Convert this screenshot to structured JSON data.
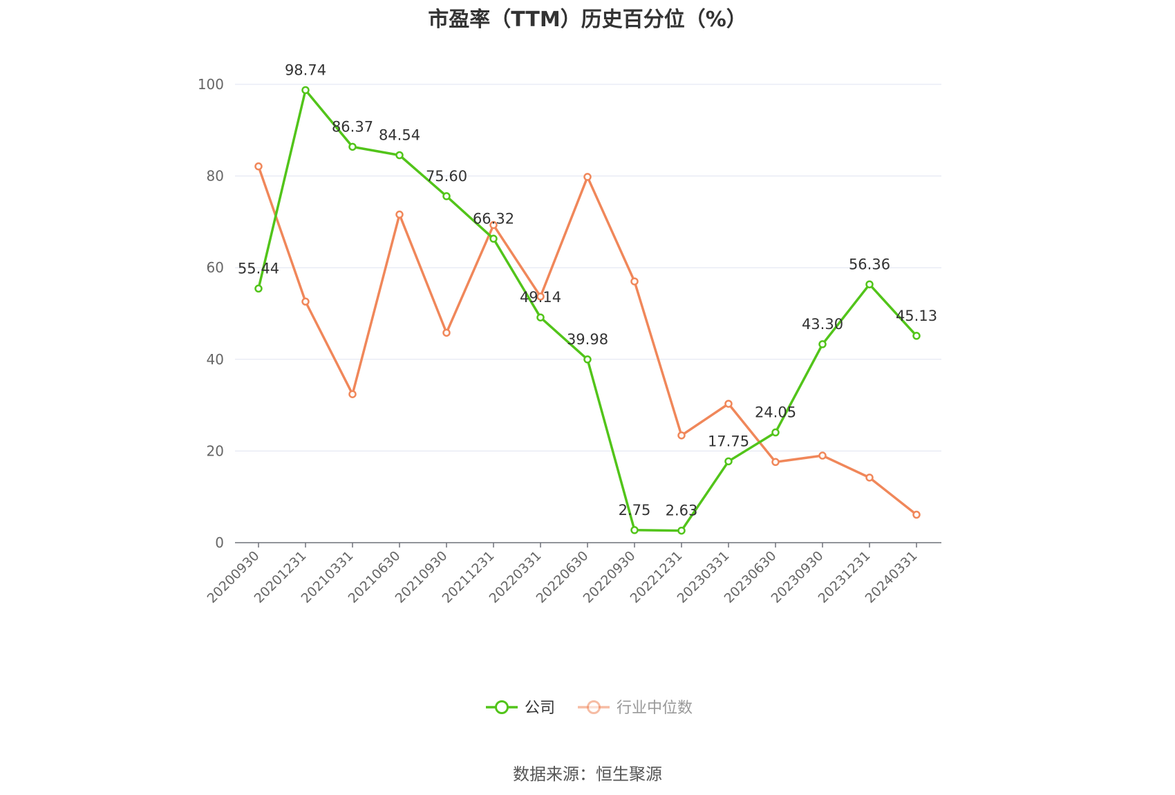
{
  "chart_data": {
    "type": "line",
    "title": "市盈率（TTM）历史百分位（%）",
    "categories": [
      "20200930",
      "20201231",
      "20210331",
      "20210630",
      "20210930",
      "20211231",
      "20220331",
      "20220630",
      "20220930",
      "20221231",
      "20230331",
      "20230630",
      "20230930",
      "20231231",
      "20240331"
    ],
    "ylim": [
      0,
      100
    ],
    "yticks": [
      0,
      20,
      40,
      60,
      80,
      100
    ],
    "grid": true,
    "legend_position": "bottom",
    "series": [
      {
        "name": "公司",
        "color": "#52c41a",
        "values": [
          55.44,
          98.74,
          86.37,
          84.54,
          75.6,
          66.32,
          49.14,
          39.98,
          2.75,
          2.63,
          17.75,
          24.05,
          43.3,
          56.36,
          45.13
        ],
        "labels": [
          "55.44",
          "98.74",
          "86.37",
          "84.54",
          "75.60",
          "66.32",
          "49.14",
          "39.98",
          "2.75",
          "2.63",
          "17.75",
          "24.05",
          "43.30",
          "56.36",
          "45.13"
        ]
      },
      {
        "name": "行业中位数",
        "color": "#f0875a",
        "values": [
          82.1,
          52.6,
          32.4,
          71.6,
          45.8,
          69.3,
          53.7,
          79.8,
          57.0,
          23.4,
          30.3,
          17.6,
          19.0,
          14.2,
          6.1
        ]
      }
    ]
  },
  "source_text": "数据来源：恒生聚源"
}
